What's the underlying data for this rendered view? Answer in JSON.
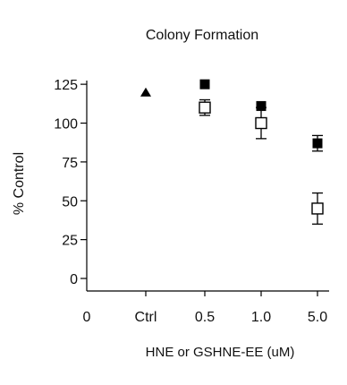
{
  "chart_data": {
    "type": "scatter",
    "title": "Colony Formation",
    "xlabel": "HNE or GSHNE-EE (uM)",
    "ylabel": "% Control",
    "categories": [
      "0",
      "Ctrl",
      "0.5",
      "1.0",
      "5.0"
    ],
    "yticks": [
      0,
      25,
      50,
      75,
      100,
      125
    ],
    "ytick_labels": [
      "0",
      "25",
      "50",
      "75",
      "100",
      "125"
    ],
    "ylim": [
      0,
      135
    ],
    "grid": false,
    "legend": "none",
    "series": [
      {
        "marker": "triangle-filled",
        "color": "#000000",
        "points": [
          {
            "x": "Ctrl",
            "y": 120
          }
        ]
      },
      {
        "marker": "square-filled",
        "color": "#000000",
        "points": [
          {
            "x": "0.5",
            "y": 125
          },
          {
            "x": "1.0",
            "y": 111
          },
          {
            "x": "5.0",
            "y": 87,
            "err": 5
          }
        ]
      },
      {
        "marker": "square-open",
        "color": "#000000",
        "points": [
          {
            "x": "0.5",
            "y": 110,
            "err": 5
          },
          {
            "x": "1.0",
            "y": 100,
            "err": 10
          },
          {
            "x": "5.0",
            "y": 45,
            "err": 10
          }
        ]
      }
    ]
  }
}
